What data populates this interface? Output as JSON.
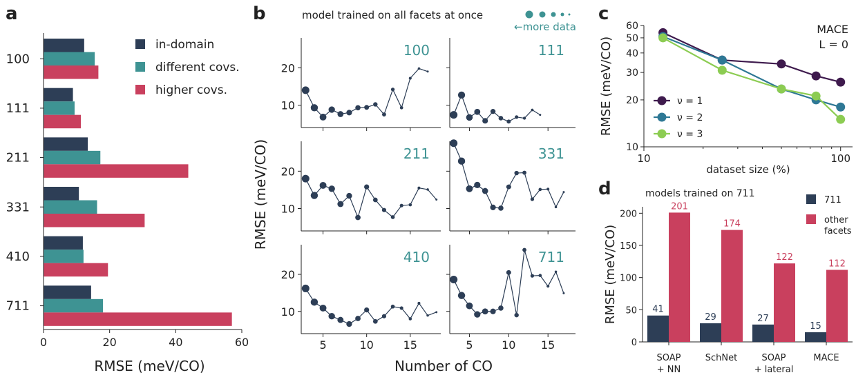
{
  "colors": {
    "dark": "#2d3e56",
    "teal": "#3e9393",
    "red": "#c9405e",
    "purple": "#3e1a4d",
    "blue": "#2e7895",
    "green": "#8ccc52"
  },
  "chart_data": [
    {
      "panel": "a",
      "type": "bar",
      "orientation": "horizontal",
      "categories": [
        "100",
        "111",
        "211",
        "331",
        "410",
        "711"
      ],
      "series": [
        {
          "name": "in-domain",
          "color": "#2d3e56",
          "values": [
            12.3,
            8.9,
            13.4,
            10.7,
            11.9,
            14.4
          ]
        },
        {
          "name": "different covs.",
          "color": "#3e9393",
          "values": [
            15.5,
            9.4,
            17.2,
            16.2,
            12.1,
            18.0
          ]
        },
        {
          "name": "higher covs.",
          "color": "#c9405e",
          "values": [
            16.6,
            11.3,
            43.8,
            30.6,
            19.5,
            57.0
          ]
        }
      ],
      "xlabel": "RMSE (meV/CO)",
      "xlim": [
        0,
        60
      ],
      "xticks": [
        "0",
        "20",
        "40",
        "60"
      ],
      "legend": "top-right"
    },
    {
      "panel": "b",
      "type": "scatter",
      "title": "model trained on all facets at once",
      "annotation": "←more data",
      "xlabel": "Number of CO",
      "ylabel": "RMSE (meV/CO)",
      "xlim": [
        2.5,
        18.5
      ],
      "xticks": [
        "5",
        "10",
        "15"
      ],
      "ylim": [
        4,
        28
      ],
      "yticks": [
        "10",
        "20"
      ],
      "facets": [
        {
          "label": "100",
          "x": [
            3,
            4,
            5,
            6,
            7,
            8,
            9,
            10,
            11,
            12,
            13,
            14,
            15,
            16,
            17
          ],
          "y": [
            14,
            9.3,
            6.8,
            8.8,
            7.6,
            8,
            9.3,
            9.4,
            10.2,
            7.5,
            14.2,
            9.3,
            17.2,
            19.8,
            19
          ]
        },
        {
          "label": "111",
          "x": [
            3,
            4,
            5,
            6,
            7,
            8,
            9,
            10,
            11,
            12,
            13,
            14
          ],
          "y": [
            7.4,
            12.7,
            6.7,
            8.2,
            5.8,
            8.3,
            6.5,
            5.6,
            6.8,
            6.5,
            8.7,
            7.4
          ]
        },
        {
          "label": "211",
          "x": [
            3,
            4,
            5,
            6,
            7,
            8,
            9,
            10,
            11,
            12,
            13,
            14,
            15,
            16,
            17,
            18
          ],
          "y": [
            18,
            13.5,
            16.2,
            15.3,
            11.2,
            13.4,
            7.6,
            15.8,
            12.3,
            9.6,
            7.7,
            10.8,
            11,
            15.5,
            15.1,
            12.4
          ]
        },
        {
          "label": "331",
          "x": [
            3,
            4,
            5,
            6,
            7,
            8,
            9,
            10,
            11,
            12,
            13,
            14,
            15,
            16,
            17
          ],
          "y": [
            27.5,
            22.7,
            15.3,
            16.3,
            14.7,
            10.3,
            10.1,
            15.8,
            19.5,
            19.6,
            12.5,
            15.1,
            15.2,
            10.4,
            14.4
          ]
        },
        {
          "label": "410",
          "x": [
            3,
            4,
            5,
            6,
            7,
            8,
            9,
            10,
            11,
            12,
            13,
            14,
            15,
            16,
            17,
            18
          ],
          "y": [
            16.2,
            12.5,
            10.9,
            8.7,
            7.7,
            6.6,
            8.1,
            10.4,
            7.3,
            8.7,
            11.3,
            10.9,
            8,
            12.2,
            8.9,
            9.8
          ]
        },
        {
          "label": "711",
          "x": [
            3,
            4,
            5,
            6,
            7,
            8,
            9,
            10,
            11,
            12,
            13,
            14,
            15,
            16,
            17
          ],
          "y": [
            18.6,
            14.3,
            11.5,
            9.2,
            10,
            10,
            10.9,
            20.5,
            9,
            26.6,
            19.6,
            19.7,
            16.8,
            20.7,
            14.9
          ]
        }
      ]
    },
    {
      "panel": "c",
      "type": "line",
      "xscale": "log",
      "yscale": "log",
      "label": "MACE\nL = 0",
      "xlabel": "dataset size (%)",
      "ylabel": "RMSE (meV/CO)",
      "xlim": [
        10,
        115
      ],
      "ylim": [
        10,
        60
      ],
      "xticks": [
        "10",
        "100"
      ],
      "yticks": [
        "10",
        "20",
        "30",
        "40",
        "50",
        "60"
      ],
      "x": [
        12.5,
        25,
        50,
        75,
        100
      ],
      "series": [
        {
          "name": "ν = 1",
          "color": "#3e1a4d",
          "values": [
            54,
            36,
            34,
            28.5,
            26
          ]
        },
        {
          "name": "ν = 2",
          "color": "#2e7895",
          "values": [
            51,
            36,
            23.5,
            20,
            18
          ]
        },
        {
          "name": "ν = 3",
          "color": "#8ccc52",
          "values": [
            50,
            31,
            23.5,
            21.2,
            15
          ]
        }
      ],
      "legend": "lower-left"
    },
    {
      "panel": "d",
      "type": "bar",
      "title": "models trained on 711",
      "categories": [
        "SOAP\n+ NN",
        "SchNet",
        "SOAP\n+ lateral",
        "MACE"
      ],
      "series": [
        {
          "name": "711",
          "color": "#2d3e56",
          "values": [
            41,
            29,
            27,
            15
          ]
        },
        {
          "name": "other\nfacets",
          "color": "#c9405e",
          "values": [
            201,
            174,
            122,
            112
          ]
        }
      ],
      "ylabel": "RMSE (meV/CO)",
      "ylim": [
        0,
        210
      ],
      "yticks": [
        "0",
        "50",
        "100",
        "150",
        "200"
      ],
      "legend": "top-right"
    }
  ],
  "panel_labels": [
    "a",
    "b",
    "c",
    "d"
  ]
}
